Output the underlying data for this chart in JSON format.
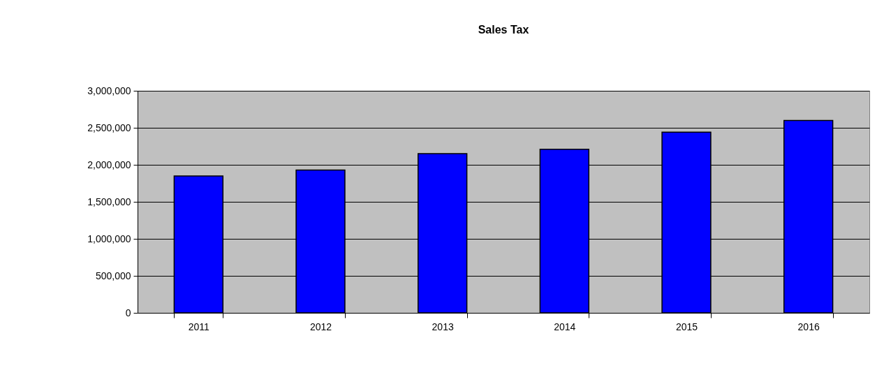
{
  "chart_data": {
    "type": "bar",
    "title": "Sales Tax",
    "categories": [
      "2011",
      "2012",
      "2013",
      "2014",
      "2015",
      "2016"
    ],
    "values": [
      1850000,
      1930000,
      2150000,
      2210000,
      2440000,
      2600000
    ],
    "color": "#0000ff",
    "ylim": [
      0,
      3000000
    ],
    "yticks": [
      0,
      {
        "value": 500000,
        "label": "500,000"
      },
      {
        "value": 1000000,
        "label": "1,000,000"
      },
      {
        "value": 1500000,
        "label": "1,500,000"
      },
      {
        "value": 2000000,
        "label": "2,000,000"
      },
      {
        "value": 2500000,
        "label": "2,500,000"
      },
      {
        "value": 3000000,
        "label": "3,000,000"
      }
    ],
    "grid": "y"
  }
}
